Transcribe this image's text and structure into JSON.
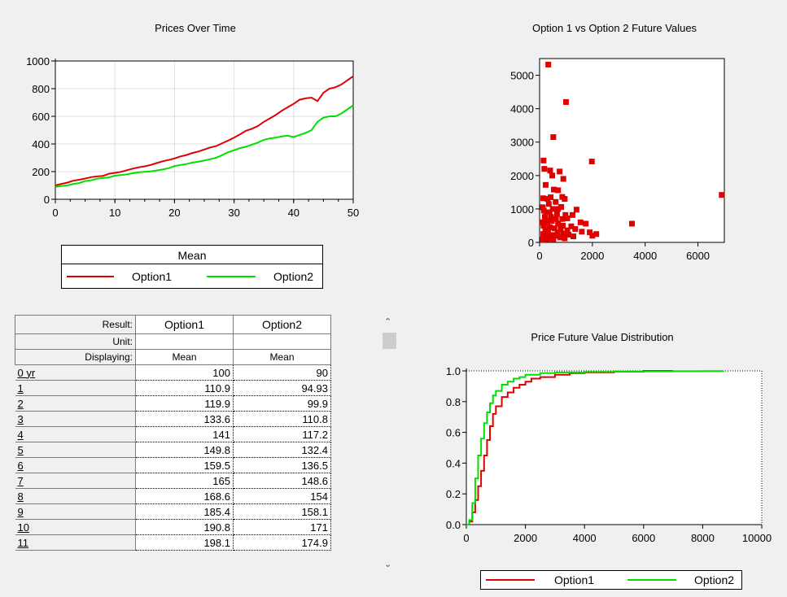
{
  "charts": {
    "prices": {
      "title": "Prices Over Time",
      "x_ticks": [
        "0",
        "10",
        "20",
        "30",
        "40",
        "50"
      ],
      "y_ticks": [
        "0",
        "200",
        "400",
        "600",
        "800",
        "1000"
      ],
      "legend": {
        "title": "Mean",
        "items": [
          "Option1",
          "Option2"
        ]
      }
    },
    "scatter": {
      "title": "Option 1 vs Option 2 Future Values",
      "x_ticks": [
        "0",
        "2000",
        "4000",
        "6000"
      ],
      "y_ticks": [
        "0",
        "1000",
        "2000",
        "3000",
        "4000",
        "5000"
      ]
    },
    "cdf": {
      "title": "Price Future Value Distribution",
      "x_ticks": [
        "0",
        "2000",
        "4000",
        "6000",
        "8000",
        "10000"
      ],
      "y_ticks": [
        "0.0",
        "0.2",
        "0.4",
        "0.6",
        "0.8",
        "1.0"
      ],
      "legend": {
        "items": [
          "Option1",
          "Option2"
        ]
      }
    }
  },
  "colors": {
    "option1": "#e00000",
    "option2": "#00e000",
    "scatter": "#e00000"
  },
  "table": {
    "result_label": "Result:",
    "unit_label": "Unit:",
    "displaying_label": "Displaying:",
    "columns": [
      "Option1",
      "Option2"
    ],
    "displaying": [
      "Mean",
      "Mean"
    ],
    "rows": [
      {
        "label": "0 yr",
        "v1": "100",
        "v2": "90"
      },
      {
        "label": "1",
        "v1": "110.9",
        "v2": "94.93"
      },
      {
        "label": "2",
        "v1": "119.9",
        "v2": "99.9"
      },
      {
        "label": "3",
        "v1": "133.6",
        "v2": "110.8"
      },
      {
        "label": "4",
        "v1": "141",
        "v2": "117.2"
      },
      {
        "label": "5",
        "v1": "149.8",
        "v2": "132.4"
      },
      {
        "label": "6",
        "v1": "159.5",
        "v2": "136.5"
      },
      {
        "label": "7",
        "v1": "165",
        "v2": "148.6"
      },
      {
        "label": "8",
        "v1": "168.6",
        "v2": "154"
      },
      {
        "label": "9",
        "v1": "185.4",
        "v2": "158.1"
      },
      {
        "label": "10",
        "v1": "190.8",
        "v2": "171"
      },
      {
        "label": "11",
        "v1": "198.1",
        "v2": "174.9"
      }
    ]
  },
  "chart_data": [
    {
      "type": "line",
      "title": "Prices Over Time",
      "xlim": [
        0,
        50
      ],
      "ylim": [
        0,
        1000
      ],
      "x": [
        0,
        1,
        2,
        3,
        4,
        5,
        6,
        7,
        8,
        9,
        10,
        11,
        12,
        13,
        14,
        15,
        16,
        17,
        18,
        19,
        20,
        21,
        22,
        23,
        24,
        25,
        26,
        27,
        28,
        29,
        30,
        31,
        32,
        33,
        34,
        35,
        36,
        37,
        38,
        39,
        40,
        41,
        42,
        43,
        44,
        45,
        46,
        47,
        48,
        49,
        50
      ],
      "series": [
        {
          "name": "Option1",
          "values": [
            100,
            111,
            120,
            134,
            141,
            150,
            160,
            165,
            169,
            185,
            191,
            198,
            210,
            222,
            231,
            238,
            248,
            262,
            275,
            284,
            295,
            310,
            320,
            335,
            345,
            360,
            375,
            385,
            405,
            425,
            445,
            470,
            495,
            510,
            530,
            560,
            585,
            610,
            640,
            665,
            690,
            720,
            730,
            735,
            710,
            770,
            800,
            810,
            830,
            860,
            890
          ]
        },
        {
          "name": "Option2",
          "values": [
            90,
            95,
            100,
            111,
            117,
            132,
            137,
            149,
            154,
            158,
            171,
            175,
            180,
            188,
            195,
            198,
            202,
            208,
            215,
            225,
            240,
            248,
            255,
            265,
            272,
            280,
            290,
            300,
            320,
            340,
            355,
            370,
            380,
            395,
            410,
            430,
            440,
            445,
            455,
            460,
            450,
            465,
            480,
            500,
            560,
            590,
            600,
            600,
            620,
            650,
            680
          ]
        }
      ]
    },
    {
      "type": "scatter",
      "title": "Option 1 vs Option 2 Future Values",
      "xlim": [
        0,
        7000
      ],
      "ylim": [
        0,
        5500
      ],
      "points": [
        [
          330,
          5320
        ],
        [
          1000,
          4200
        ],
        [
          520,
          3150
        ],
        [
          1980,
          2420
        ],
        [
          6900,
          1420
        ],
        [
          3500,
          560
        ],
        [
          150,
          2450
        ],
        [
          180,
          2200
        ],
        [
          400,
          2150
        ],
        [
          760,
          2120
        ],
        [
          480,
          2000
        ],
        [
          900,
          1900
        ],
        [
          230,
          1720
        ],
        [
          540,
          1580
        ],
        [
          700,
          1560
        ],
        [
          140,
          1320
        ],
        [
          420,
          1350
        ],
        [
          860,
          1360
        ],
        [
          300,
          1300
        ],
        [
          950,
          1300
        ],
        [
          610,
          1210
        ],
        [
          820,
          1060
        ],
        [
          120,
          1050
        ],
        [
          1400,
          980
        ],
        [
          500,
          1000
        ],
        [
          250,
          900
        ],
        [
          380,
          900
        ],
        [
          660,
          850
        ],
        [
          1250,
          820
        ],
        [
          1050,
          720
        ],
        [
          200,
          760
        ],
        [
          1550,
          600
        ],
        [
          460,
          640
        ],
        [
          100,
          600
        ],
        [
          700,
          560
        ],
        [
          300,
          560
        ],
        [
          880,
          500
        ],
        [
          1200,
          480
        ],
        [
          1750,
          560
        ],
        [
          150,
          500
        ],
        [
          390,
          450
        ],
        [
          560,
          420
        ],
        [
          1900,
          300
        ],
        [
          220,
          380
        ],
        [
          800,
          400
        ],
        [
          1050,
          360
        ],
        [
          680,
          300
        ],
        [
          320,
          280
        ],
        [
          1350,
          400
        ],
        [
          2000,
          200
        ],
        [
          140,
          250
        ],
        [
          480,
          220
        ],
        [
          2150,
          250
        ],
        [
          900,
          260
        ],
        [
          600,
          200
        ],
        [
          250,
          180
        ],
        [
          1100,
          230
        ],
        [
          400,
          150
        ],
        [
          780,
          150
        ],
        [
          180,
          120
        ],
        [
          1600,
          320
        ],
        [
          1280,
          180
        ],
        [
          950,
          120
        ],
        [
          520,
          100
        ],
        [
          300,
          90
        ],
        [
          120,
          80
        ],
        [
          860,
          700
        ],
        [
          620,
          700
        ],
        [
          260,
          650
        ],
        [
          430,
          760
        ],
        [
          160,
          950
        ],
        [
          700,
          1000
        ],
        [
          980,
          820
        ],
        [
          350,
          1150
        ]
      ]
    },
    {
      "type": "line",
      "title": "Price Future Value Distribution",
      "xlim": [
        0,
        10000
      ],
      "ylim": [
        0,
        1
      ],
      "series": [
        {
          "name": "Option1",
          "x": [
            0,
            100,
            200,
            300,
            400,
            500,
            600,
            700,
            800,
            900,
            1000,
            1200,
            1400,
            1600,
            1800,
            2000,
            2200,
            2500,
            3000,
            3500,
            4000,
            5000,
            6000,
            7000
          ],
          "values": [
            0,
            0.02,
            0.08,
            0.16,
            0.25,
            0.35,
            0.45,
            0.55,
            0.64,
            0.72,
            0.77,
            0.83,
            0.86,
            0.89,
            0.91,
            0.93,
            0.95,
            0.96,
            0.975,
            0.985,
            0.99,
            0.995,
            1.0,
            1.0
          ]
        },
        {
          "name": "Option2",
          "x": [
            0,
            100,
            200,
            300,
            400,
            500,
            600,
            700,
            800,
            900,
            1000,
            1200,
            1400,
            1600,
            1800,
            2000,
            2500,
            3000,
            4000,
            5000,
            6000,
            7000,
            8000,
            8700
          ],
          "values": [
            0,
            0.03,
            0.14,
            0.3,
            0.45,
            0.56,
            0.66,
            0.73,
            0.79,
            0.84,
            0.87,
            0.91,
            0.93,
            0.95,
            0.96,
            0.975,
            0.985,
            0.99,
            0.993,
            0.995,
            0.997,
            0.998,
            0.999,
            1.0
          ]
        }
      ]
    }
  ]
}
